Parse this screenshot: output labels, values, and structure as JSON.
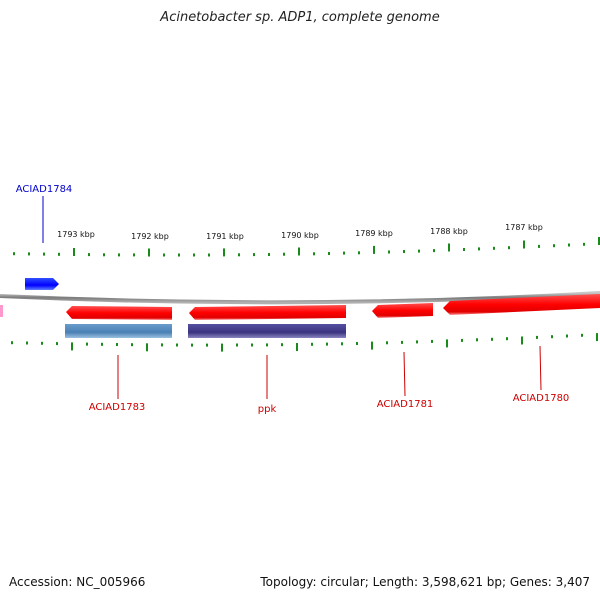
{
  "title": "Acinetobacter sp. ADP1, complete genome",
  "footer": {
    "accession": "Accession: NC_005966",
    "topology": "Topology: circular; Length: 3,598,621 bp; Genes: 3,407"
  },
  "colors": {
    "forward_gene": "#0000ff",
    "reverse_gene": "#ff0000",
    "backbone": "#808080",
    "tick": "#1a8a1a",
    "product_blue": "#4a80b4",
    "product_purple": "#3a3380",
    "pink_partial": "#ff99cc"
  },
  "kbp_labels": [
    "1793 kbp",
    "1792 kbp",
    "1791 kbp",
    "1790 kbp",
    "1789 kbp",
    "1788 kbp",
    "1787 kbp"
  ],
  "genes": [
    {
      "label": "ACIAD1784",
      "strand": "forward",
      "color": "#0000cc"
    },
    {
      "label": "ACIAD1783",
      "strand": "reverse",
      "color": "#cc0000"
    },
    {
      "label": "ppk",
      "strand": "reverse",
      "color": "#cc0000"
    },
    {
      "label": "ACIAD1781",
      "strand": "reverse",
      "color": "#cc0000"
    },
    {
      "label": "ACIAD1780",
      "strand": "reverse",
      "color": "#cc0000"
    }
  ]
}
